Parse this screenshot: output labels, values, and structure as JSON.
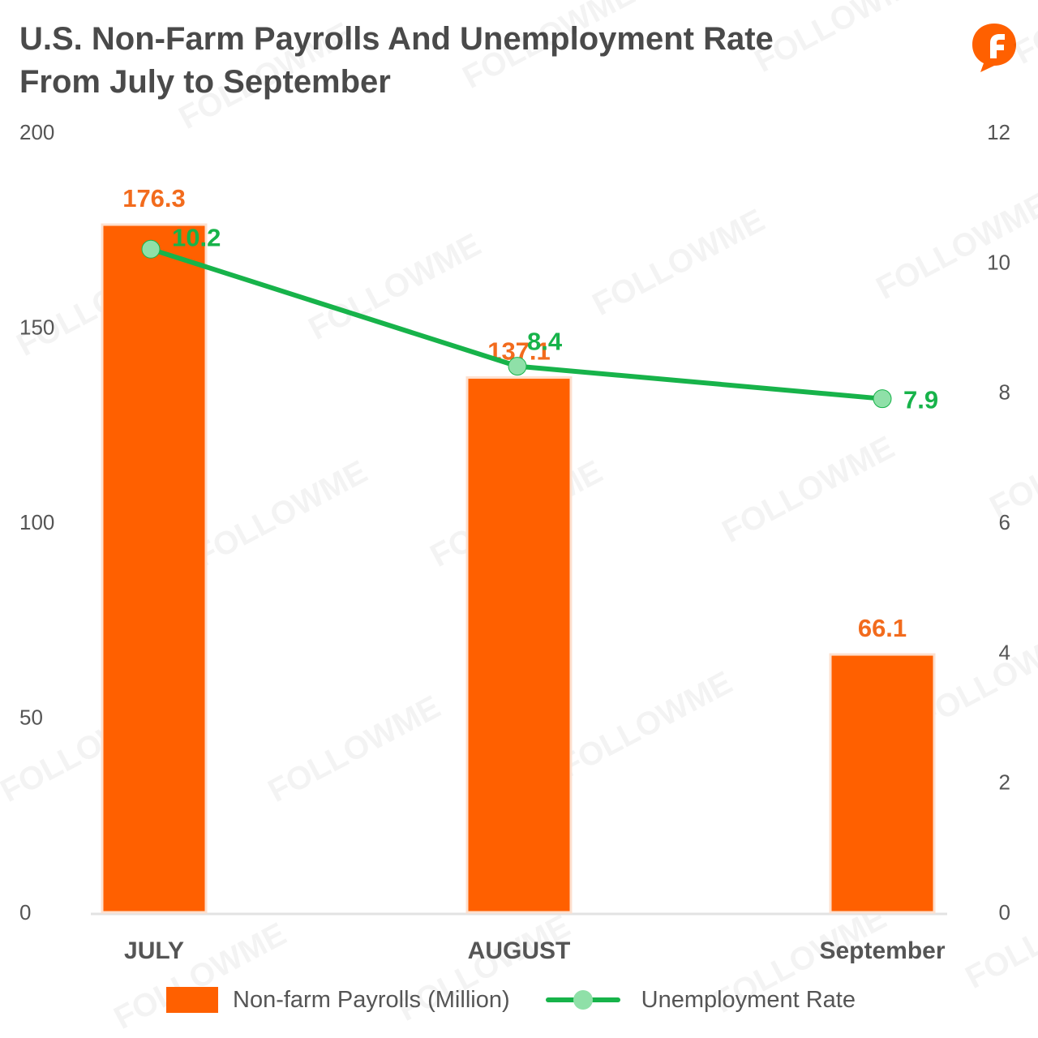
{
  "title_line1": "U.S. Non-Farm Payrolls And Unemployment Rate",
  "title_line2": "From July to September",
  "watermark_text": "FOLLOWME",
  "chart_data": {
    "type": "bar",
    "categories": [
      "JULY",
      "AUGUST",
      "September"
    ],
    "series": [
      {
        "name": "Non-farm Payrolls (Million)",
        "type": "bar",
        "axis": "left",
        "values": [
          176.3,
          137.1,
          66.1
        ],
        "color": "#ff6000"
      },
      {
        "name": "Unemployment Rate",
        "type": "line",
        "axis": "right",
        "values": [
          10.2,
          8.4,
          7.9
        ],
        "color": "#17b34a"
      }
    ],
    "y_left": {
      "ticks": [
        0,
        50,
        100,
        150,
        200
      ],
      "ylim": [
        0,
        200
      ]
    },
    "y_right": {
      "ticks": [
        0,
        2,
        4,
        6,
        8,
        10,
        12
      ],
      "ylim": [
        0,
        12
      ]
    },
    "legend_position": "bottom",
    "grid": false
  },
  "colors": {
    "bar": "#ff6000",
    "bar_label": "#f26b1d",
    "line": "#17b34a",
    "marker": "#8fe0a8",
    "text": "#555555",
    "title": "#4a4a4a",
    "logo": "#ff6000"
  },
  "logo_icon": "followme-logo-icon"
}
